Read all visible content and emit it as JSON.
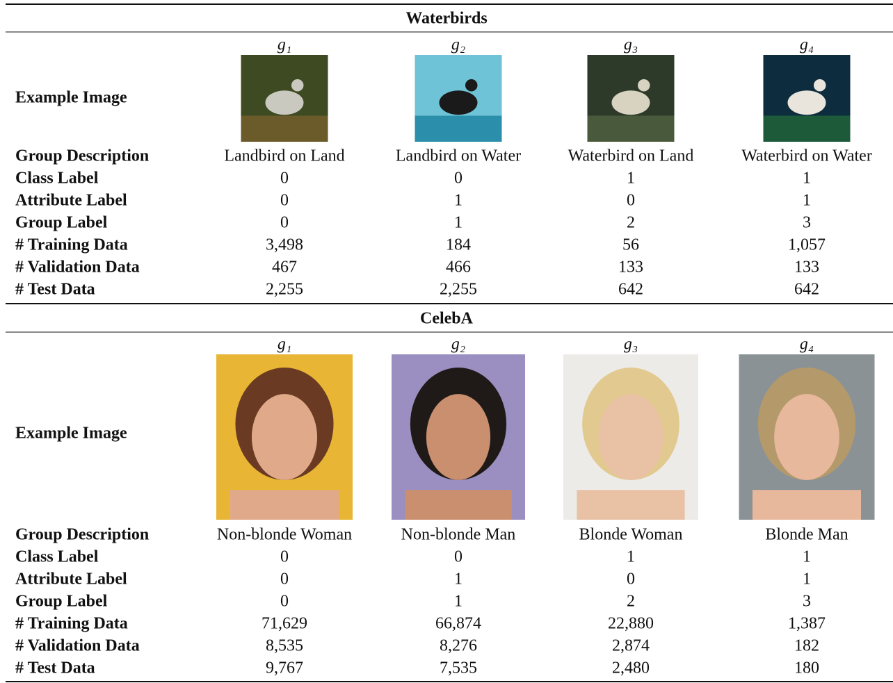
{
  "sections": [
    {
      "title": "Waterbirds",
      "groups": [
        "g₁",
        "g₂",
        "g₃",
        "g₄"
      ],
      "image_row_label": "Example Image",
      "rows": [
        {
          "label": "Group Description",
          "cells": [
            "Landbird on Land",
            "Landbird on Water",
            "Waterbird on Land",
            "Waterbird on Water"
          ]
        },
        {
          "label": "Class Label",
          "cells": [
            "0",
            "0",
            "1",
            "1"
          ]
        },
        {
          "label": "Attribute Label",
          "cells": [
            "0",
            "1",
            "0",
            "1"
          ]
        },
        {
          "label": "Group Label",
          "cells": [
            "0",
            "1",
            "2",
            "3"
          ]
        },
        {
          "label": "# Training Data",
          "cells": [
            "3,498",
            "184",
            "56",
            "1,057"
          ]
        },
        {
          "label": "# Validation Data",
          "cells": [
            "467",
            "466",
            "133",
            "133"
          ]
        },
        {
          "label": "# Test Data",
          "cells": [
            "2,255",
            "2,255",
            "642",
            "642"
          ]
        }
      ]
    },
    {
      "title": "CelebA",
      "groups": [
        "g₁",
        "g₂",
        "g₃",
        "g₄"
      ],
      "image_row_label": "Example Image",
      "rows": [
        {
          "label": "Group Description",
          "cells": [
            "Non-blonde Woman",
            "Non-blonde Man",
            "Blonde Woman",
            "Blonde Man"
          ]
        },
        {
          "label": "Class Label",
          "cells": [
            "0",
            "0",
            "1",
            "1"
          ]
        },
        {
          "label": "Attribute Label",
          "cells": [
            "0",
            "1",
            "0",
            "1"
          ]
        },
        {
          "label": "Group Label",
          "cells": [
            "0",
            "1",
            "2",
            "3"
          ]
        },
        {
          "label": "# Training Data",
          "cells": [
            "71,629",
            "66,874",
            "22,880",
            "1,387"
          ]
        },
        {
          "label": "# Validation Data",
          "cells": [
            "8,535",
            "8,276",
            "2,874",
            "182"
          ]
        },
        {
          "label": "# Test Data",
          "cells": [
            "9,767",
            "7,535",
            "2,480",
            "180"
          ]
        }
      ]
    }
  ]
}
